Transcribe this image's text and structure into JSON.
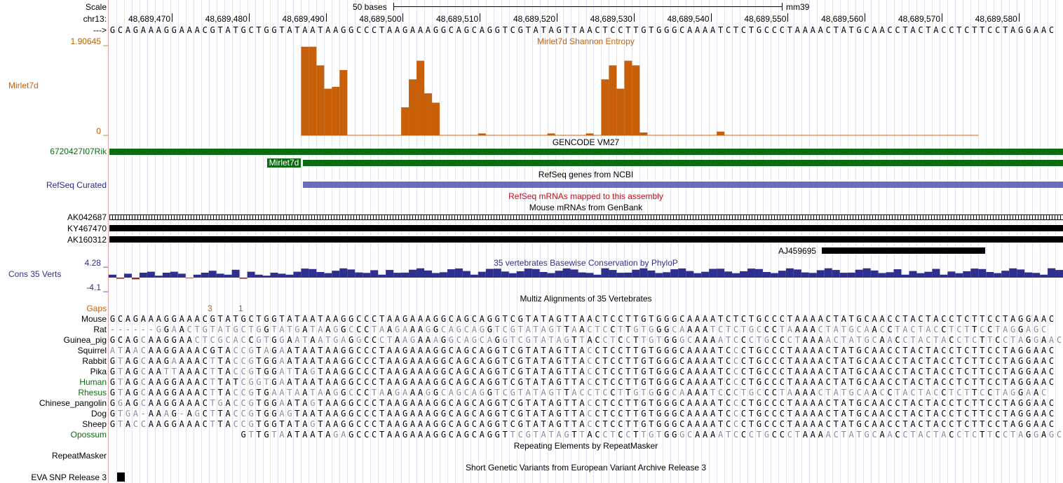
{
  "ruler": {
    "scale_label": "Scale",
    "chrom_label": "chr13:",
    "scale_text": "50 bases",
    "assembly": "mm39",
    "arrow_label": "--->",
    "positions": [
      "48,689,470",
      "48,689,480",
      "48,689,490",
      "48,689,500",
      "48,689,510",
      "48,689,520",
      "48,689,530",
      "48,689,540",
      "48,689,550",
      "48,689,560",
      "48,689,570",
      "48,689,580"
    ],
    "sequence": "GCAGAAAGGAAACGTATGCTGGTATAATAAGGCCCTAAGAAAGGCAGCAGGTCGTATAGTTAACTCCTTGTGGGCAAAATCTCTGCCCTAAAACTATGCAACCTACTACCTCTTCCTAGGAAC"
  },
  "entropy_track": {
    "label": "Mirlet7d",
    "title": "Mirlet7d Shannon Entropy",
    "ymax": "1.90645 _",
    "ymin": "0 _",
    "color": "#c8600a"
  },
  "gencode_track": {
    "title": "GENCODE VM27",
    "gene1_label": "6720427I07Rik",
    "gene2_label": "Mirlet7d",
    "color": "#0d6b12"
  },
  "refseq_track": {
    "title": "RefSeq genes from NCBI",
    "label": "RefSeq Curated",
    "color": "#6b6bbf"
  },
  "refseq_mrna": {
    "title": "RefSeq mRNAs mapped to this assembly",
    "color": "#c0101a"
  },
  "mrna_track": {
    "title": "Mouse mRNAs from GenBank",
    "items": [
      "AK042687",
      "KY467470",
      "AK160312",
      "AJ459695"
    ]
  },
  "cons_track": {
    "label": "Cons 35 Verts",
    "title": "35 vertebrates Basewise Conservation by PhyloP",
    "ymax": "4.28 _",
    "ymin": "-4.1 _",
    "color": "#2f2f8f"
  },
  "multiz": {
    "title": "Multiz Alignments of 35 Vertebrates",
    "gaps_label": "Gaps",
    "gap_marks": [
      "3",
      "1"
    ],
    "species": [
      {
        "name": "Mouse",
        "color": "#000",
        "seq": "GCAGAAAGGAAACGTATGCTGGTATAATAAGGCCCTAAGAAAGGCAGCAGGTCGTATAGTTAACTCCTTGTGGGCAAAATCTCTGCCCTAAAACTATGCAACCTACTACCTCTTCCTAGGAAC"
      },
      {
        "name": "Rat",
        "color": "#000",
        "seq": "------GGAACTGTATGCTGGTATGATAAGGCCCTAAGAAAGGCAGCAGGTCGTATAGTTAACTCCTTGTGGGCAAAATCTCTGCCCTAAAACTATGCAACCTACTACCTCTTCCTAGGAGC"
      },
      {
        "name": "Guinea_pig",
        "color": "#000",
        "seq": "GCAGCAAGGAACTCGCACCGTGGAATAATGAGGCCCTAAGAAAGGCAGCAGGTCGTATAGTTACCTCCTTGTGGGCAAAATCCCTGCCCTAAAACTATGCAACCTACTACCTCTTCCTAGGAAC"
      },
      {
        "name": "Squirrel",
        "color": "#000",
        "seq": "ATAACAAGGAAACGTACCGTAGAATAATAAGGCCCTAAGAAAGGCAGCAGGTCGTATAGTTACCTCCTTGTGGGCAAAATCCCTGCCCTAAAACTATGCAACCTACTACCTCTTCCTAGGAAC"
      },
      {
        "name": "Rabbit",
        "color": "#000",
        "seq": "GTAGCAAGAAAACTTACCGTGGAATAATAAGGCCCTAAGAAAGGCAGCAGGTCGTATAGTTACCTCCTTGTGGGCAAAATCCCTGCCCTAAAACTATGCAACCTACTACCTCTTCCTAGGAAC"
      },
      {
        "name": "Pika",
        "color": "#000",
        "seq": "GTAGCAATTAAACTTACCGTGGATTAGTAAGGCCCTAAGAAAGGCAGCAGGTCGTATAGTTACCTCCTTGTGGGCAAAATCCCTGCCCTAAAACTATGCAACCTACTACCTCTTCCTAGGAAC"
      },
      {
        "name": "Human",
        "color": "#0d6b12",
        "seq": "GTAGCAAGGAAACTTATCGGTGAATAATAAGGCCCTAAGAAAGGCAGCAGGTCGTATAGTTACCTCCTTGTGGGCAAAATCCCTGCCCTAAAACTATGCAACCTACTACCTCTTCCTAGGAAC"
      },
      {
        "name": "Rhesus",
        "color": "#0d6b12",
        "seq": "GTAGCAAGGAAACTTACCGTGAATAATAAGGCCCTAAGAAAGGCAGCAGGTCGTATAGTTACCTCCTTGTGGGCAAAATCCCTGCCCTAAAACTATGCAACCTACTACCTCTTCCTAGGAAC"
      },
      {
        "name": "Chinese_pangolin",
        "color": "#000",
        "seq": "GGAGCAAGGAAACTGACCGTGGAATAGTAAGGCCCTAAGAAAGGCAGCAGGTCGTATAGTTACCTCCTTGTGGGCAAAATCCCTGCCCTAAAACTATGCAACCTACTACCTCTTCCTAGGAAC"
      },
      {
        "name": "Dog",
        "color": "#000",
        "seq": "GTGA-AAAG-AGCTTACCGTGGAGTAATAAGGCCCTAAGAAAGGCAGCAGGTCGTATAGTTACCTCCTTGTGGGCAAAATCCCTGCCCTAAAACTATGCAACCTACTACCTCTTCCTAGGAAC"
      },
      {
        "name": "Sheep",
        "color": "#000",
        "seq": "GTACCAAGGAAACTTACCGTGGTATAGTAAGGCCCTAAGAAAGGCAGCAGGTCGTATAGTTACCTCCTTGTGGGCAAAATCCCTGCCCTAAAACTATGCAACCTACTACCTCTTCCTAGGAAC"
      },
      {
        "name": "Opossum",
        "color": "#0d6b12",
        "seq": "                 GTTGTAATAATAGAGCCCTAAGAAAGGCAGCAGGTTCGTATAGTTACCTCCTTGTGGGCAAAATCCCTGCCCTAAAACTATGCAACCTACTACCTCTTCCTAGGAGC"
      }
    ]
  },
  "repeatmasker": {
    "title": "Repeating Elements by RepeatMasker",
    "label": "RepeatMasker"
  },
  "eva_track": {
    "title": "Short Genetic Variants from European Variant Archive Release 3",
    "label": "EVA SNP Release 3"
  }
}
